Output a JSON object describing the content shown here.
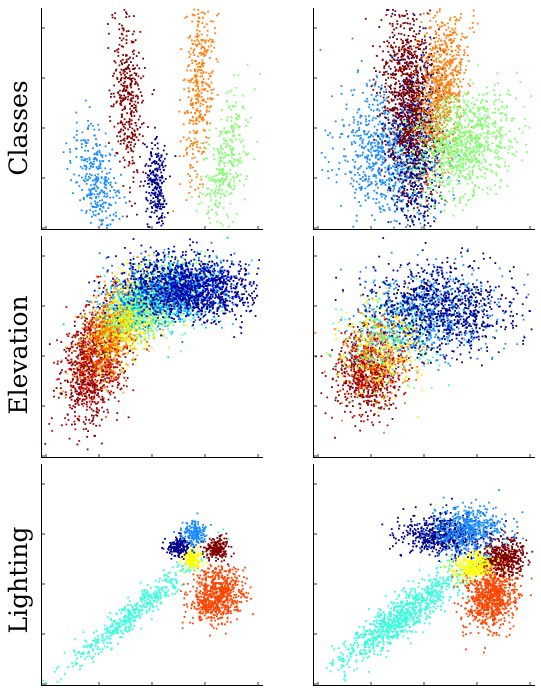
{
  "chart_data": {
    "type": "scatter",
    "rows": [
      {
        "label": "Classes"
      },
      {
        "label": "Elevation"
      },
      {
        "label": "Lighting"
      }
    ],
    "panels": [
      {
        "row": 0,
        "col": 0,
        "xlim": [
          0,
          10
        ],
        "ylim": [
          0,
          10
        ],
        "clusters": [
          {
            "color": "#800000",
            "cx": 3.9,
            "cy": 6.1,
            "sx": 0.35,
            "sy": 1.9,
            "rho": -0.2,
            "n": 380
          },
          {
            "color": "#ff7f0e",
            "cx": 7.1,
            "cy": 6.6,
            "sx": 0.35,
            "sy": 2.1,
            "rho": 0.3,
            "n": 380
          },
          {
            "color": "#1a8cff",
            "cx": 2.5,
            "cy": 2.2,
            "sx": 0.5,
            "sy": 1.2,
            "rho": -0.35,
            "n": 320
          },
          {
            "color": "#00008b",
            "cx": 5.2,
            "cy": 1.8,
            "sx": 0.25,
            "sy": 1.2,
            "rho": -0.1,
            "n": 260
          },
          {
            "color": "#7fff6a",
            "cx": 8.3,
            "cy": 2.9,
            "sx": 0.5,
            "sy": 1.6,
            "rho": 0.5,
            "n": 320
          }
        ]
      },
      {
        "row": 0,
        "col": 1,
        "xlim": [
          0,
          10
        ],
        "ylim": [
          0,
          10
        ],
        "clusters": [
          {
            "color": "#1a8cff",
            "cx": 3.4,
            "cy": 3.4,
            "sx": 1.1,
            "sy": 1.5,
            "rho": -0.2,
            "n": 900
          },
          {
            "color": "#00008b",
            "cx": 4.6,
            "cy": 4.0,
            "sx": 0.6,
            "sy": 2.0,
            "rho": 0.0,
            "n": 700
          },
          {
            "color": "#800000",
            "cx": 4.3,
            "cy": 6.1,
            "sx": 0.6,
            "sy": 2.0,
            "rho": -0.1,
            "n": 900
          },
          {
            "color": "#ff7f0e",
            "cx": 5.8,
            "cy": 6.4,
            "sx": 0.55,
            "sy": 1.9,
            "rho": 0.35,
            "n": 800
          },
          {
            "color": "#7fff6a",
            "cx": 6.8,
            "cy": 3.9,
            "sx": 1.1,
            "sy": 1.2,
            "rho": 0.2,
            "n": 900
          }
        ]
      },
      {
        "row": 1,
        "col": 0,
        "xlim": [
          0,
          10
        ],
        "ylim": [
          0,
          10
        ],
        "clusters": [
          {
            "color": "#800000",
            "cx": 2.3,
            "cy": 4.0,
            "sx": 0.7,
            "sy": 1.4,
            "rho": 0.3,
            "n": 600
          },
          {
            "color": "#cc0000",
            "cx": 2.6,
            "cy": 4.8,
            "sx": 0.7,
            "sy": 1.3,
            "rho": 0.4,
            "n": 500
          },
          {
            "color": "#ff5500",
            "cx": 3.1,
            "cy": 5.6,
            "sx": 0.7,
            "sy": 1.2,
            "rho": 0.5,
            "n": 500
          },
          {
            "color": "#ffaa00",
            "cx": 3.7,
            "cy": 6.2,
            "sx": 0.8,
            "sy": 1.1,
            "rho": 0.5,
            "n": 500
          },
          {
            "color": "#ffff00",
            "cx": 4.3,
            "cy": 6.6,
            "sx": 0.9,
            "sy": 1.0,
            "rho": 0.5,
            "n": 450
          },
          {
            "color": "#aaff55",
            "cx": 4.8,
            "cy": 6.9,
            "sx": 1.0,
            "sy": 0.9,
            "rho": 0.4,
            "n": 450
          },
          {
            "color": "#55ffcc",
            "cx": 5.2,
            "cy": 7.1,
            "sx": 1.1,
            "sy": 0.8,
            "rho": 0.3,
            "n": 450
          },
          {
            "color": "#00ccff",
            "cx": 5.6,
            "cy": 7.3,
            "sx": 1.2,
            "sy": 0.75,
            "rho": 0.2,
            "n": 500
          },
          {
            "color": "#0077ff",
            "cx": 6.0,
            "cy": 7.6,
            "sx": 1.3,
            "sy": 0.7,
            "rho": 0.1,
            "n": 500
          },
          {
            "color": "#0000cc",
            "cx": 6.5,
            "cy": 7.8,
            "sx": 1.4,
            "sy": 0.7,
            "rho": -0.05,
            "n": 600
          },
          {
            "color": "#00008b",
            "cx": 7.0,
            "cy": 7.6,
            "sx": 1.4,
            "sy": 0.7,
            "rho": -0.15,
            "n": 600
          }
        ]
      },
      {
        "row": 1,
        "col": 1,
        "xlim": [
          0,
          10
        ],
        "ylim": [
          0,
          10
        ],
        "clusters": [
          {
            "color": "#800000",
            "cx": 2.4,
            "cy": 3.8,
            "sx": 0.7,
            "sy": 0.9,
            "rho": 0.0,
            "n": 400
          },
          {
            "color": "#cc0000",
            "cx": 2.7,
            "cy": 4.2,
            "sx": 0.8,
            "sy": 1.0,
            "rho": 0.1,
            "n": 400
          },
          {
            "color": "#ff7700",
            "cx": 3.0,
            "cy": 4.7,
            "sx": 0.9,
            "sy": 1.0,
            "rho": 0.1,
            "n": 300
          },
          {
            "color": "#ffee00",
            "cx": 3.3,
            "cy": 5.2,
            "sx": 1.0,
            "sy": 1.1,
            "rho": 0.1,
            "n": 250
          },
          {
            "color": "#55ffbb",
            "cx": 3.8,
            "cy": 5.5,
            "sx": 1.2,
            "sy": 1.1,
            "rho": 0.1,
            "n": 300
          },
          {
            "color": "#1a8cff",
            "cx": 5.2,
            "cy": 6.5,
            "sx": 1.6,
            "sy": 1.0,
            "rho": 0.0,
            "n": 600
          },
          {
            "color": "#00008b",
            "cx": 5.9,
            "cy": 6.8,
            "sx": 1.7,
            "sy": 1.0,
            "rho": -0.05,
            "n": 800
          }
        ]
      },
      {
        "row": 2,
        "col": 0,
        "xlim": [
          0,
          10
        ],
        "ylim": [
          0,
          10
        ],
        "clusters": [
          {
            "color": "#33ffdd",
            "cx": 4.2,
            "cy": 3.3,
            "sx": 1.6,
            "sy": 1.35,
            "rho": 0.97,
            "n": 500
          },
          {
            "color": "#ff4400",
            "cx": 7.9,
            "cy": 4.1,
            "sx": 0.6,
            "sy": 0.6,
            "rho": 0.1,
            "n": 700
          },
          {
            "color": "#ffff00",
            "cx": 6.8,
            "cy": 5.7,
            "sx": 0.22,
            "sy": 0.22,
            "rho": 0.0,
            "n": 150
          },
          {
            "color": "#00008b",
            "cx": 6.2,
            "cy": 6.3,
            "sx": 0.28,
            "sy": 0.22,
            "rho": 0.0,
            "n": 180
          },
          {
            "color": "#800000",
            "cx": 7.9,
            "cy": 6.2,
            "sx": 0.28,
            "sy": 0.25,
            "rho": 0.0,
            "n": 200
          },
          {
            "color": "#1a8cff",
            "cx": 6.9,
            "cy": 6.9,
            "sx": 0.25,
            "sy": 0.25,
            "rho": 0.0,
            "n": 180
          }
        ]
      },
      {
        "row": 2,
        "col": 1,
        "xlim": [
          0,
          10
        ],
        "ylim": [
          0,
          10
        ],
        "clusters": [
          {
            "color": "#33ffdd",
            "cx": 4.1,
            "cy": 3.2,
            "sx": 1.4,
            "sy": 1.1,
            "rho": 0.9,
            "n": 900
          },
          {
            "color": "#ff4400",
            "cx": 8.0,
            "cy": 4.0,
            "sx": 0.6,
            "sy": 0.7,
            "rho": 0.1,
            "n": 800
          },
          {
            "color": "#00008b",
            "cx": 5.9,
            "cy": 6.8,
            "sx": 1.0,
            "sy": 0.45,
            "rho": 0.0,
            "n": 600
          },
          {
            "color": "#1a8cff",
            "cx": 7.0,
            "cy": 7.0,
            "sx": 0.9,
            "sy": 0.55,
            "rho": 0.0,
            "n": 500
          },
          {
            "color": "#800000",
            "cx": 8.6,
            "cy": 5.8,
            "sx": 0.5,
            "sy": 0.4,
            "rho": 0.0,
            "n": 400
          },
          {
            "color": "#ffff00",
            "cx": 7.3,
            "cy": 5.4,
            "sx": 0.5,
            "sy": 0.3,
            "rho": 0.0,
            "n": 250
          }
        ]
      }
    ]
  }
}
